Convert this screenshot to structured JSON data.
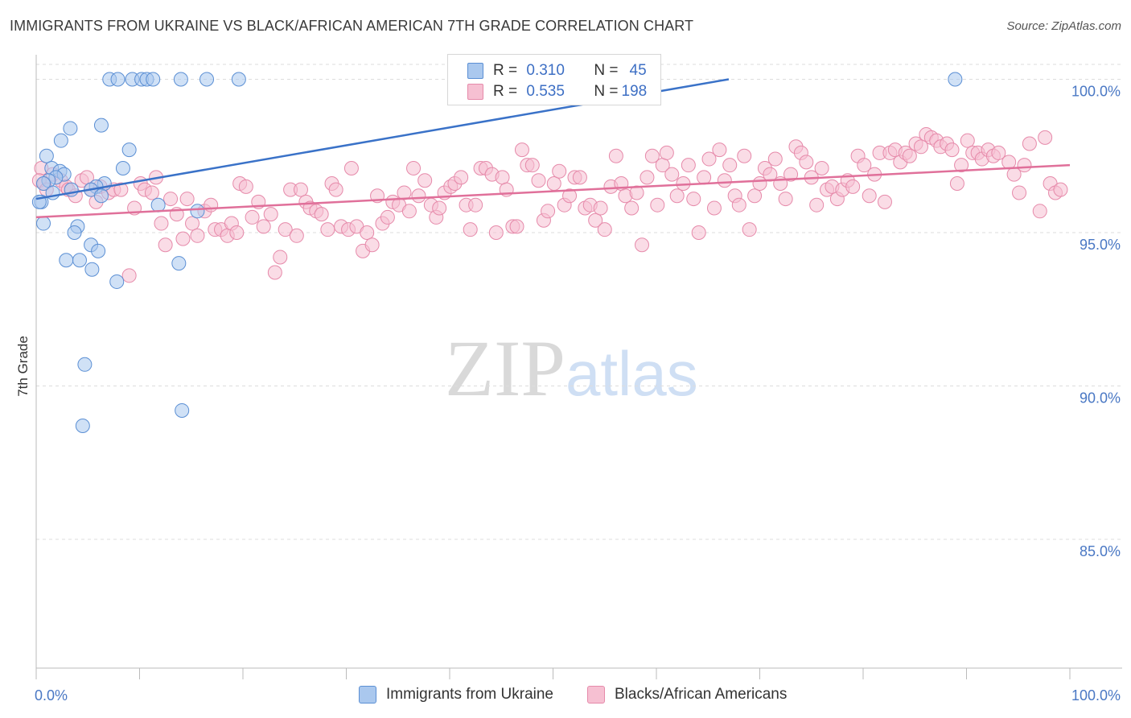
{
  "title": "IMMIGRANTS FROM UKRAINE VS BLACK/AFRICAN AMERICAN 7TH GRADE CORRELATION CHART",
  "source": "Source: ZipAtlas.com",
  "watermark": {
    "zip": "ZIP",
    "atlas": "atlas"
  },
  "legend": {
    "rows": [
      {
        "r_label": "R =",
        "r_value": "0.310",
        "n_label": "N =",
        "n_value": "45"
      },
      {
        "r_label": "R =",
        "r_value": "0.535",
        "n_label": "N =",
        "n_value": "198"
      }
    ]
  },
  "bottom_legend": [
    "Immigrants from Ukraine",
    "Blacks/African Americans"
  ],
  "colors": {
    "blue_fill": "#aac8ee",
    "blue_stroke": "#5b8fd4",
    "blue_line": "#3a72c8",
    "pink_fill": "#f6c0d2",
    "pink_stroke": "#e68aaa",
    "pink_line": "#e0709a",
    "grid": "#dddddd",
    "tick_label": "#4a78c4"
  },
  "chart_data": {
    "type": "scatter",
    "title": "IMMIGRANTS FROM UKRAINE VS BLACK/AFRICAN AMERICAN 7TH GRADE CORRELATION CHART",
    "xlabel": "",
    "ylabel": "7th Grade",
    "xlim": [
      0,
      100
    ],
    "ylim": [
      80.8,
      100.8
    ],
    "x_tick_labels": [
      "0.0%",
      "100.0%"
    ],
    "y_ticks": [
      85,
      90,
      95,
      100
    ],
    "y_tick_labels": [
      "85.0%",
      "90.0%",
      "95.0%",
      "100.0%"
    ],
    "series": [
      {
        "name": "Immigrants from Ukraine",
        "r": 0.31,
        "n": 45,
        "trend": {
          "x": [
            0,
            67
          ],
          "y": [
            96.1,
            100.0
          ]
        },
        "points": [
          [
            7.1,
            100
          ],
          [
            7.9,
            100
          ],
          [
            9.3,
            100
          ],
          [
            10.2,
            100
          ],
          [
            10.7,
            100
          ],
          [
            11.3,
            100
          ],
          [
            14.0,
            100
          ],
          [
            16.5,
            100
          ],
          [
            19.6,
            100
          ],
          [
            88.9,
            100
          ],
          [
            6.3,
            98.5
          ],
          [
            3.3,
            98.4
          ],
          [
            2.4,
            98.0
          ],
          [
            9.0,
            97.7
          ],
          [
            1.0,
            97.5
          ],
          [
            8.4,
            97.1
          ],
          [
            1.5,
            97.1
          ],
          [
            2.3,
            97.0
          ],
          [
            2.7,
            96.9
          ],
          [
            1.9,
            96.8
          ],
          [
            1.2,
            96.7
          ],
          [
            0.7,
            96.6
          ],
          [
            6.6,
            96.6
          ],
          [
            5.8,
            96.5
          ],
          [
            5.3,
            96.4
          ],
          [
            3.4,
            96.4
          ],
          [
            1.6,
            96.3
          ],
          [
            6.3,
            96.2
          ],
          [
            0.5,
            96.0
          ],
          [
            11.8,
            95.9
          ],
          [
            15.6,
            95.7
          ],
          [
            0.7,
            95.3
          ],
          [
            4.0,
            95.2
          ],
          [
            3.7,
            95.0
          ],
          [
            5.3,
            94.6
          ],
          [
            6.0,
            94.4
          ],
          [
            2.9,
            94.1
          ],
          [
            4.2,
            94.1
          ],
          [
            13.8,
            94.0
          ],
          [
            5.4,
            93.8
          ],
          [
            7.8,
            93.4
          ],
          [
            4.7,
            90.7
          ],
          [
            14.1,
            89.2
          ],
          [
            4.5,
            88.7
          ],
          [
            0.3,
            96.0
          ]
        ]
      },
      {
        "name": "Blacks/African Americans",
        "r": 0.535,
        "n": 198,
        "trend": {
          "x": [
            0,
            100
          ],
          "y": [
            95.5,
            97.2
          ]
        },
        "points": [
          [
            0.5,
            97.1
          ],
          [
            0.8,
            96.6
          ],
          [
            1.6,
            96.9
          ],
          [
            2.4,
            96.7
          ],
          [
            2.9,
            96.5
          ],
          [
            3.1,
            96.4
          ],
          [
            3.8,
            96.2
          ],
          [
            4.4,
            96.7
          ],
          [
            4.9,
            96.8
          ],
          [
            5.3,
            96.4
          ],
          [
            5.8,
            96.0
          ],
          [
            6.2,
            96.5
          ],
          [
            7.0,
            96.3
          ],
          [
            7.5,
            96.4
          ],
          [
            8.2,
            96.4
          ],
          [
            9.0,
            93.6
          ],
          [
            9.5,
            95.8
          ],
          [
            10.1,
            96.6
          ],
          [
            10.5,
            96.4
          ],
          [
            11.2,
            96.3
          ],
          [
            11.6,
            96.8
          ],
          [
            12.1,
            95.3
          ],
          [
            12.5,
            94.6
          ],
          [
            13.0,
            96.1
          ],
          [
            13.6,
            95.6
          ],
          [
            14.2,
            94.8
          ],
          [
            14.6,
            96.1
          ],
          [
            15.1,
            95.3
          ],
          [
            15.6,
            94.9
          ],
          [
            16.3,
            95.7
          ],
          [
            16.9,
            95.9
          ],
          [
            17.3,
            95.1
          ],
          [
            17.9,
            95.1
          ],
          [
            18.5,
            94.9
          ],
          [
            18.9,
            95.3
          ],
          [
            19.4,
            95.0
          ],
          [
            19.7,
            96.6
          ],
          [
            20.3,
            96.5
          ],
          [
            20.9,
            95.5
          ],
          [
            21.5,
            96.0
          ],
          [
            22.0,
            95.2
          ],
          [
            22.7,
            95.6
          ],
          [
            23.1,
            93.7
          ],
          [
            23.6,
            94.2
          ],
          [
            24.1,
            95.1
          ],
          [
            24.6,
            96.4
          ],
          [
            25.2,
            94.9
          ],
          [
            25.6,
            96.4
          ],
          [
            26.1,
            96.0
          ],
          [
            26.5,
            95.8
          ],
          [
            27.1,
            95.7
          ],
          [
            27.6,
            95.6
          ],
          [
            28.2,
            95.1
          ],
          [
            28.6,
            96.6
          ],
          [
            29.0,
            96.4
          ],
          [
            29.5,
            95.2
          ],
          [
            30.2,
            95.1
          ],
          [
            30.5,
            97.1
          ],
          [
            31.0,
            95.2
          ],
          [
            31.6,
            94.4
          ],
          [
            32.0,
            95.0
          ],
          [
            32.5,
            94.6
          ],
          [
            33.0,
            96.2
          ],
          [
            33.5,
            95.3
          ],
          [
            34.0,
            95.5
          ],
          [
            34.5,
            96.0
          ],
          [
            35.1,
            95.9
          ],
          [
            35.6,
            96.3
          ],
          [
            36.1,
            95.7
          ],
          [
            36.5,
            97.1
          ],
          [
            37.0,
            96.2
          ],
          [
            37.6,
            96.7
          ],
          [
            38.2,
            95.9
          ],
          [
            38.7,
            95.5
          ],
          [
            39.0,
            95.8
          ],
          [
            39.5,
            96.3
          ],
          [
            40.1,
            96.5
          ],
          [
            40.5,
            96.6
          ],
          [
            41.1,
            96.8
          ],
          [
            41.6,
            95.9
          ],
          [
            42.0,
            95.1
          ],
          [
            42.5,
            95.9
          ],
          [
            43.0,
            97.1
          ],
          [
            43.5,
            97.1
          ],
          [
            44.1,
            96.9
          ],
          [
            44.5,
            95.0
          ],
          [
            45.1,
            96.8
          ],
          [
            45.5,
            96.4
          ],
          [
            46.1,
            95.2
          ],
          [
            46.5,
            95.2
          ],
          [
            47.0,
            97.7
          ],
          [
            47.5,
            97.2
          ],
          [
            48.0,
            97.2
          ],
          [
            48.6,
            96.7
          ],
          [
            49.1,
            95.4
          ],
          [
            49.5,
            95.7
          ],
          [
            50.1,
            96.6
          ],
          [
            50.6,
            97.0
          ],
          [
            51.1,
            95.9
          ],
          [
            51.6,
            96.2
          ],
          [
            52.1,
            96.8
          ],
          [
            52.6,
            96.8
          ],
          [
            53.1,
            95.8
          ],
          [
            53.6,
            95.9
          ],
          [
            54.1,
            95.4
          ],
          [
            54.6,
            95.8
          ],
          [
            55.0,
            95.1
          ],
          [
            55.6,
            96.5
          ],
          [
            56.1,
            97.5
          ],
          [
            56.6,
            96.6
          ],
          [
            57.0,
            96.2
          ],
          [
            57.6,
            95.8
          ],
          [
            58.1,
            96.3
          ],
          [
            58.6,
            94.6
          ],
          [
            59.1,
            96.8
          ],
          [
            59.6,
            97.5
          ],
          [
            60.1,
            95.9
          ],
          [
            60.6,
            97.2
          ],
          [
            61.0,
            97.6
          ],
          [
            61.5,
            96.9
          ],
          [
            62.0,
            96.2
          ],
          [
            62.6,
            96.6
          ],
          [
            63.1,
            97.2
          ],
          [
            63.6,
            96.1
          ],
          [
            64.1,
            95.0
          ],
          [
            64.6,
            96.8
          ],
          [
            65.1,
            97.4
          ],
          [
            65.6,
            95.8
          ],
          [
            66.1,
            97.7
          ],
          [
            66.6,
            96.7
          ],
          [
            67.1,
            97.2
          ],
          [
            67.6,
            96.2
          ],
          [
            68.0,
            95.9
          ],
          [
            68.5,
            97.5
          ],
          [
            69.0,
            95.1
          ],
          [
            69.5,
            96.2
          ],
          [
            70.0,
            96.6
          ],
          [
            70.5,
            97.1
          ],
          [
            71.0,
            96.9
          ],
          [
            71.5,
            97.4
          ],
          [
            72.0,
            96.6
          ],
          [
            72.5,
            96.1
          ],
          [
            73.0,
            96.9
          ],
          [
            73.5,
            97.8
          ],
          [
            74.0,
            97.6
          ],
          [
            74.5,
            97.3
          ],
          [
            75.0,
            96.8
          ],
          [
            75.5,
            95.9
          ],
          [
            76.0,
            97.1
          ],
          [
            76.5,
            96.4
          ],
          [
            77.0,
            96.5
          ],
          [
            77.5,
            96.1
          ],
          [
            78.0,
            96.4
          ],
          [
            78.5,
            96.7
          ],
          [
            79.0,
            96.5
          ],
          [
            79.5,
            97.5
          ],
          [
            80.1,
            97.2
          ],
          [
            80.6,
            96.2
          ],
          [
            81.1,
            96.9
          ],
          [
            81.6,
            97.6
          ],
          [
            82.1,
            96.0
          ],
          [
            82.6,
            97.6
          ],
          [
            83.1,
            97.7
          ],
          [
            83.6,
            97.3
          ],
          [
            84.1,
            97.6
          ],
          [
            84.5,
            97.5
          ],
          [
            85.1,
            97.9
          ],
          [
            85.6,
            97.8
          ],
          [
            86.1,
            98.2
          ],
          [
            86.6,
            98.1
          ],
          [
            87.1,
            98.0
          ],
          [
            87.5,
            97.8
          ],
          [
            88.1,
            97.9
          ],
          [
            88.6,
            97.7
          ],
          [
            89.1,
            96.6
          ],
          [
            89.5,
            97.2
          ],
          [
            90.1,
            98.0
          ],
          [
            90.6,
            97.6
          ],
          [
            91.1,
            97.6
          ],
          [
            91.5,
            97.4
          ],
          [
            92.1,
            97.7
          ],
          [
            92.6,
            97.5
          ],
          [
            93.1,
            97.6
          ],
          [
            94.1,
            97.3
          ],
          [
            94.6,
            96.9
          ],
          [
            95.1,
            96.3
          ],
          [
            95.6,
            97.2
          ],
          [
            96.1,
            97.9
          ],
          [
            97.1,
            95.7
          ],
          [
            97.6,
            98.1
          ],
          [
            98.1,
            96.6
          ],
          [
            98.6,
            96.3
          ],
          [
            99.1,
            96.4
          ],
          [
            0.3,
            96.7
          ],
          [
            1.0,
            96.4
          ]
        ]
      }
    ]
  }
}
